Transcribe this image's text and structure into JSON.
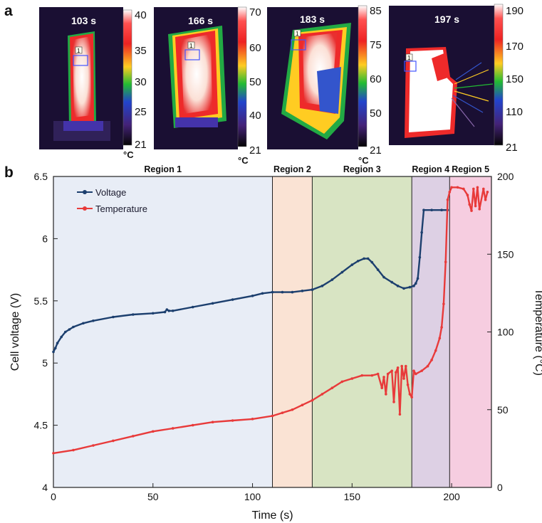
{
  "panel_a": {
    "letter": "a",
    "images": [
      {
        "time_label": "103 s",
        "colorbar_ticks": [
          "40",
          "35",
          "30",
          "25",
          "21"
        ],
        "unit": "°C",
        "marker": "1"
      },
      {
        "time_label": "166 s",
        "colorbar_ticks": [
          "70",
          "60",
          "50",
          "40",
          "21"
        ],
        "unit": "°C",
        "marker": "1"
      },
      {
        "time_label": "183 s",
        "colorbar_ticks": [
          "85",
          "75",
          "60",
          "50",
          "21"
        ],
        "unit": "°C",
        "marker": "1"
      },
      {
        "time_label": "197 s",
        "colorbar_ticks": [
          "190",
          "170",
          "150",
          "110",
          "21"
        ],
        "unit": "°C",
        "marker": "1"
      }
    ]
  },
  "chart_data": {
    "panel_letter": "b",
    "type": "line",
    "xlabel": "Time (s)",
    "ylabel": "Cell voltage (V)",
    "y2label": "Temperature (°C)",
    "xlim": [
      0,
      220
    ],
    "ylim": [
      4,
      6.5
    ],
    "y2lim": [
      0,
      200
    ],
    "x_ticks": [
      0,
      50,
      100,
      150,
      200
    ],
    "y_ticks": [
      4,
      4.5,
      5,
      5.5,
      6,
      6.5
    ],
    "y2_ticks": [
      0,
      50,
      100,
      150,
      200
    ],
    "legend_position": "top-left",
    "grid": false,
    "regions": [
      {
        "label": "Region 1",
        "x0": 0,
        "x1": 110,
        "color": "#e8edf6"
      },
      {
        "label": "Region 2",
        "x0": 110,
        "x1": 130,
        "color": "#fae3d4"
      },
      {
        "label": "Region 3",
        "x0": 130,
        "x1": 180,
        "color": "#d8e4c3"
      },
      {
        "label": "Region 4",
        "x0": 180,
        "x1": 199,
        "color": "#ddd0e4"
      },
      {
        "label": "Region 5",
        "x0": 199,
        "x1": 220,
        "color": "#f6cde0"
      }
    ],
    "series": [
      {
        "name": "Voltage",
        "axis": "left",
        "color": "#1c3f6e",
        "x": [
          0,
          1,
          2,
          4,
          6,
          8,
          10,
          15,
          20,
          30,
          40,
          50,
          56,
          57,
          58,
          60,
          70,
          80,
          90,
          100,
          105,
          110,
          115,
          120,
          125,
          130,
          135,
          140,
          145,
          150,
          153,
          156,
          158,
          160,
          163,
          166,
          170,
          173,
          176,
          179,
          181,
          182,
          183,
          184,
          185,
          186,
          190,
          195,
          198
        ],
        "values": [
          5.09,
          5.12,
          5.16,
          5.21,
          5.25,
          5.27,
          5.29,
          5.32,
          5.34,
          5.37,
          5.39,
          5.4,
          5.41,
          5.43,
          5.42,
          5.42,
          5.45,
          5.48,
          5.51,
          5.54,
          5.56,
          5.57,
          5.57,
          5.57,
          5.58,
          5.59,
          5.62,
          5.67,
          5.73,
          5.79,
          5.82,
          5.84,
          5.84,
          5.81,
          5.75,
          5.69,
          5.65,
          5.62,
          5.6,
          5.61,
          5.62,
          5.64,
          5.68,
          5.85,
          6.05,
          6.23,
          6.23,
          6.23,
          6.23
        ]
      },
      {
        "name": "Temperature",
        "axis": "right",
        "color": "#e83a3a",
        "x": [
          0,
          10,
          20,
          30,
          40,
          50,
          60,
          70,
          80,
          90,
          100,
          110,
          115,
          120,
          125,
          130,
          135,
          140,
          145,
          150,
          155,
          160,
          163,
          165,
          166,
          167,
          168,
          170,
          171,
          172,
          173,
          174,
          175,
          176,
          177,
          178,
          179,
          180,
          181,
          182,
          185,
          188,
          190,
          192,
          194,
          195,
          196,
          197,
          198,
          199,
          200,
          203,
          206,
          208,
          209,
          210,
          211,
          212,
          213,
          214,
          216,
          217,
          218
        ],
        "values": [
          22,
          24,
          27,
          30,
          33,
          36,
          38,
          40,
          42,
          43,
          44,
          46,
          48,
          50,
          53,
          56,
          60,
          64,
          68,
          70,
          72,
          72,
          73,
          64,
          71,
          60,
          73,
          75,
          55,
          74,
          77,
          47,
          78,
          70,
          78,
          66,
          60,
          58,
          75,
          73,
          75,
          78,
          82,
          88,
          96,
          103,
          118,
          145,
          185,
          190,
          193,
          193,
          192,
          188,
          182,
          178,
          192,
          181,
          193,
          179,
          192,
          185,
          190
        ]
      }
    ]
  }
}
